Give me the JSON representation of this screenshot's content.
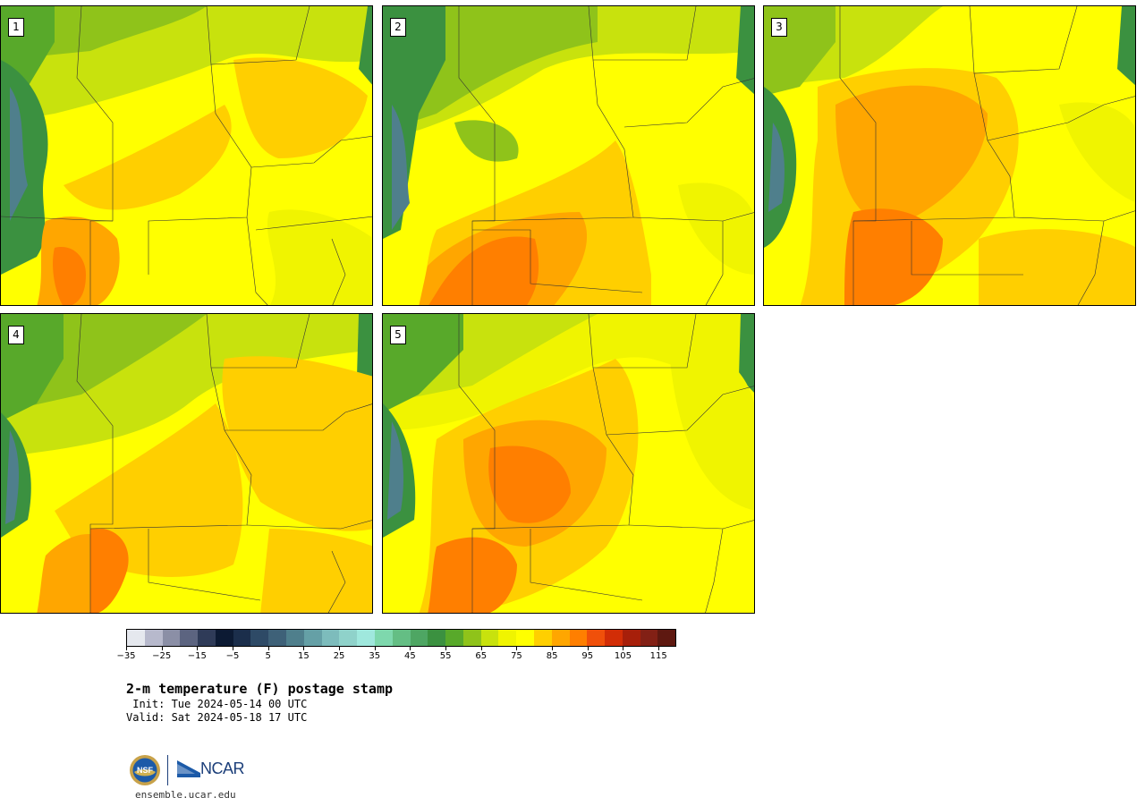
{
  "figure": {
    "title": "2-m temperature (F) postage stamp",
    "init": " Init: Tue 2024-05-14 00 UTC",
    "valid": "Valid: Sat 2024-05-18 17 UTC",
    "site": "ensemble.ucar.edu",
    "logo_text": "NCAR"
  },
  "members": [
    {
      "label": "1",
      "map": "hot-southwest"
    },
    {
      "label": "2",
      "map": "hot-south"
    },
    {
      "label": "3",
      "map": "hot-central"
    },
    {
      "label": "4",
      "map": "warm-broad"
    },
    {
      "label": "5",
      "map": "hot-plains"
    }
  ],
  "colorbar": {
    "unit": "F",
    "ticks": [
      "−35",
      "−25",
      "−15",
      "−5",
      "5",
      "15",
      "25",
      "35",
      "45",
      "55",
      "65",
      "75",
      "85",
      "95",
      "105",
      "115"
    ],
    "colors": [
      "#e5e8ee",
      "#b7b9cc",
      "#8b8fa6",
      "#5c6480",
      "#2f3b58",
      "#0c1a33",
      "#1b2e4b",
      "#2e4a66",
      "#3e6178",
      "#4f7f8c",
      "#65a0a6",
      "#7dbcbc",
      "#8fd2ca",
      "#9fe8dd",
      "#7ed8ad",
      "#64be84",
      "#4ea663",
      "#3b9140",
      "#58a92a",
      "#8fc31a",
      "#c8e20d",
      "#f0f400",
      "#ffff00",
      "#ffcf00",
      "#ffa600",
      "#ff7f00",
      "#f0500a",
      "#d22d06",
      "#a71f0a",
      "#822015",
      "#5e1810"
    ]
  }
}
